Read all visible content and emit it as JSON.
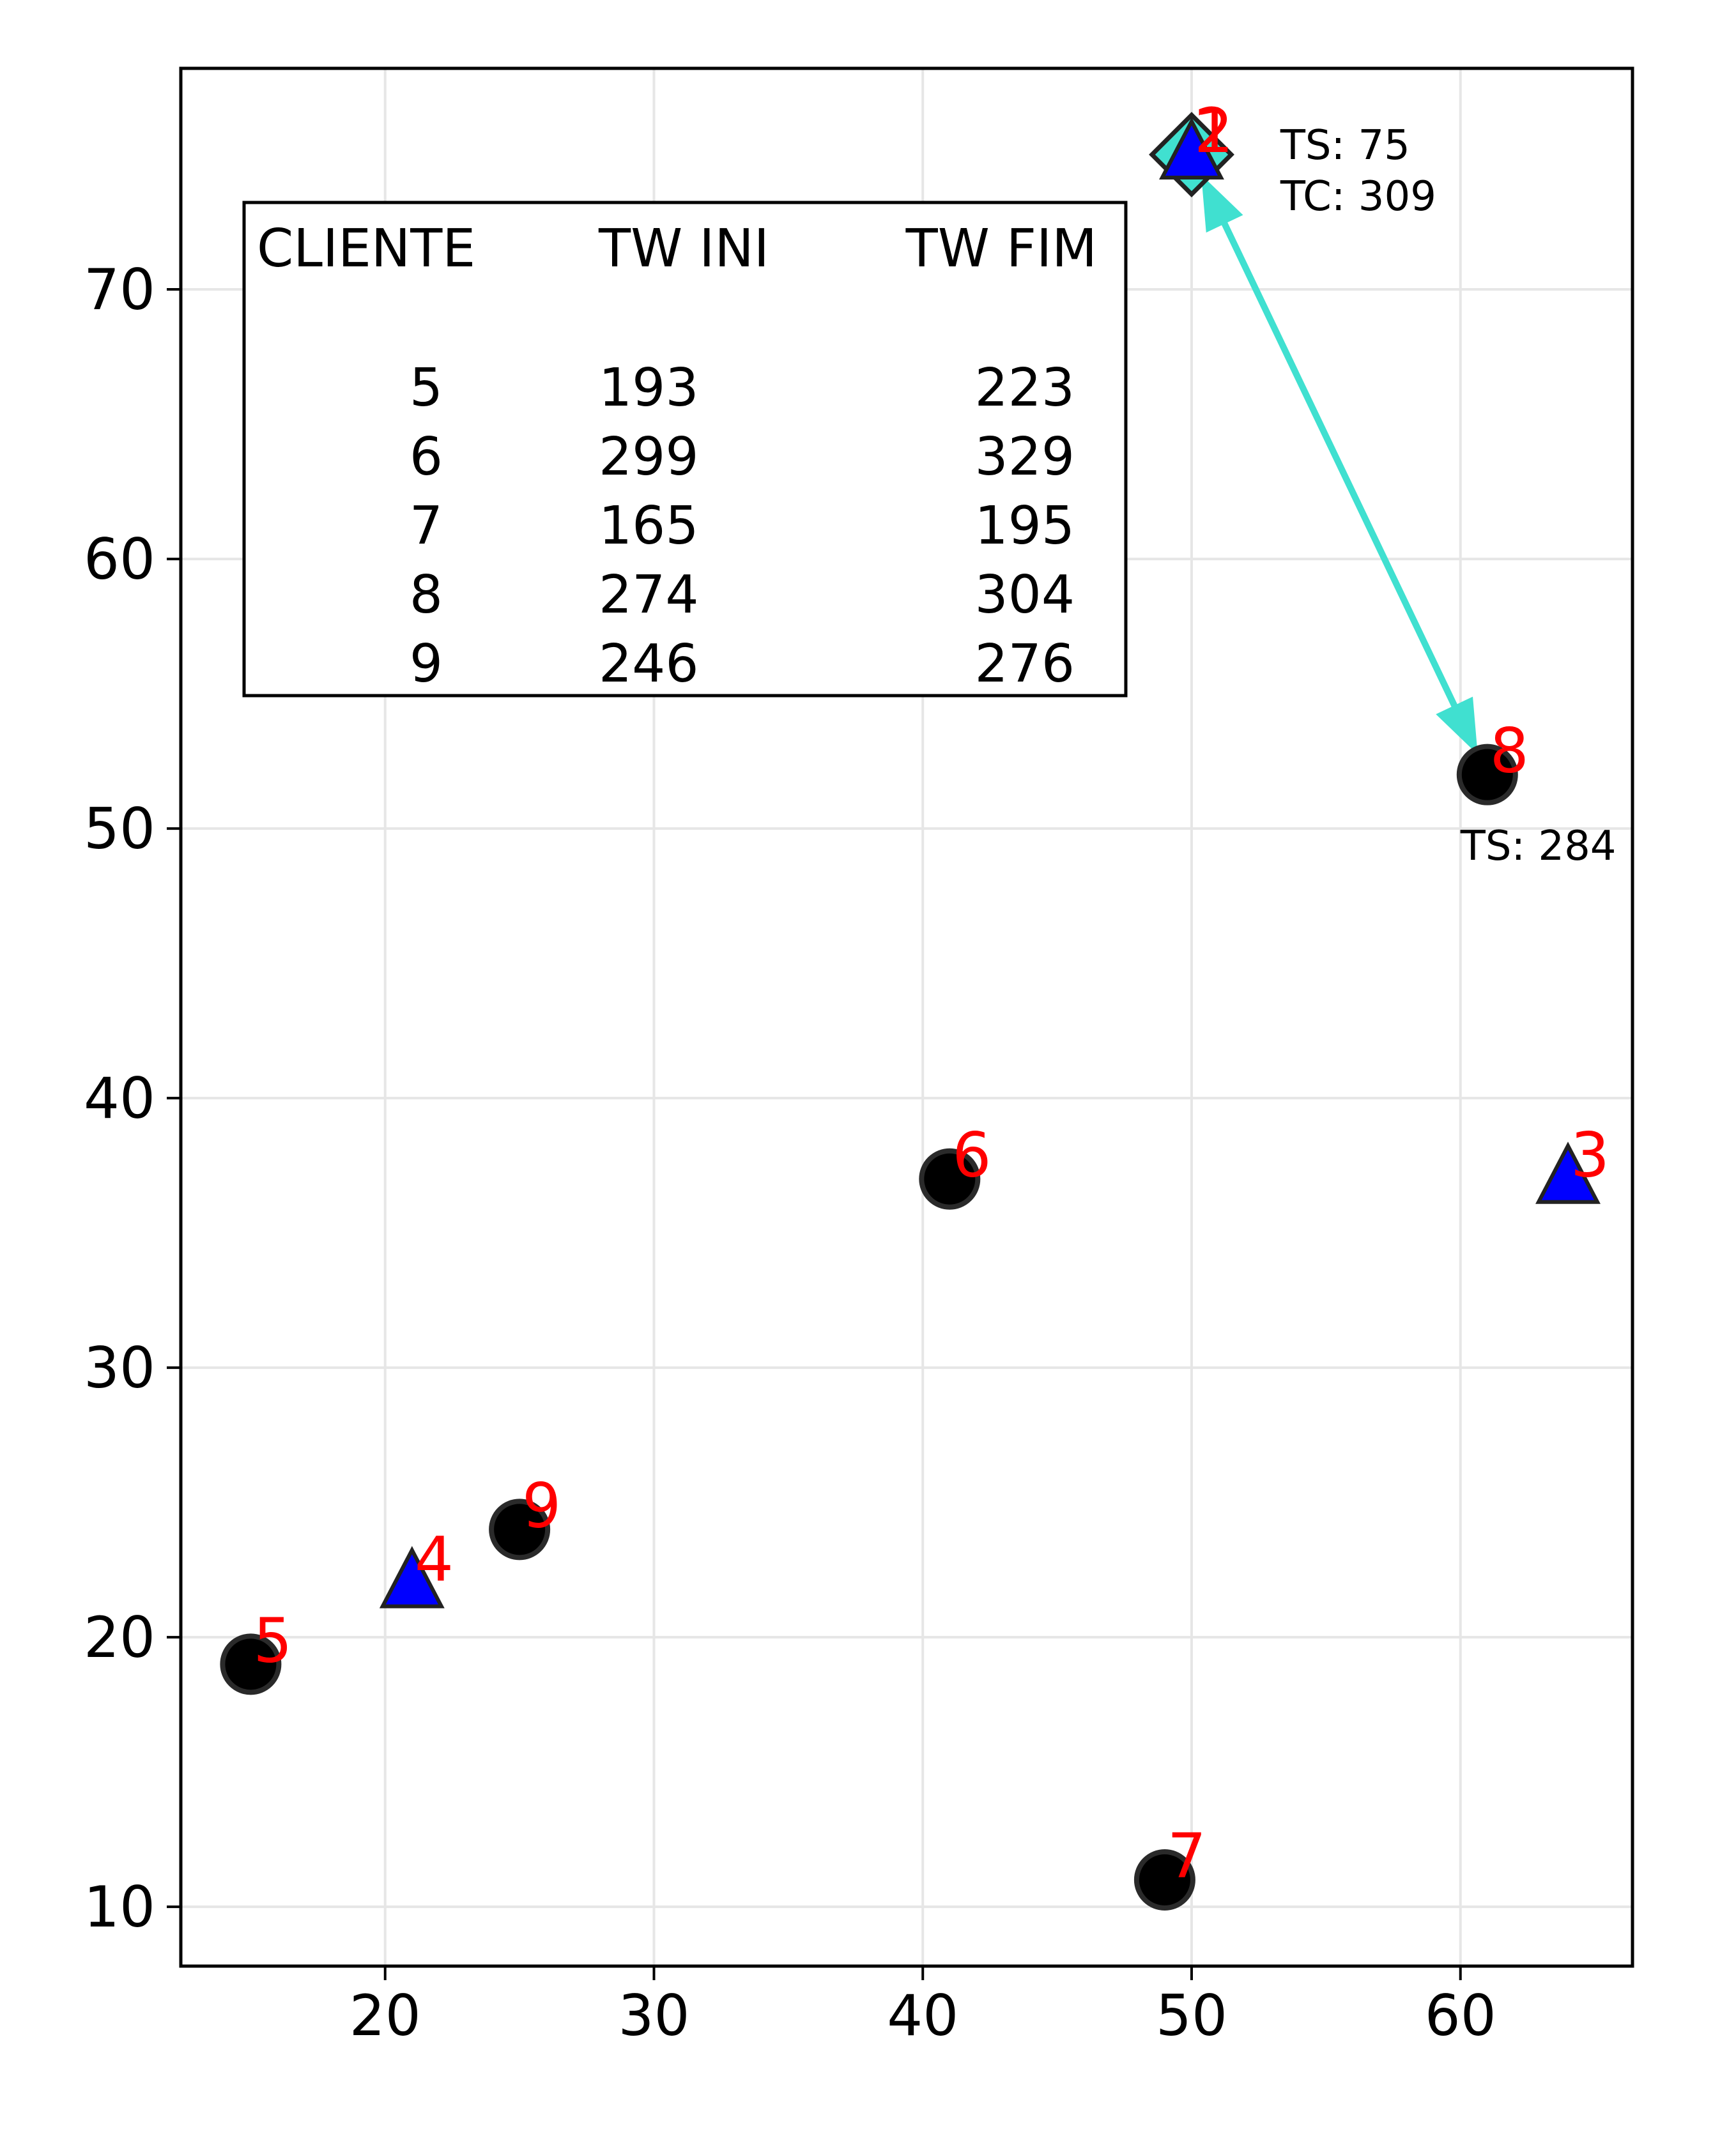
{
  "chart_data": {
    "type": "scatter",
    "xlim": [
      12.4,
      66.4
    ],
    "ylim": [
      7.8,
      78.2
    ],
    "x_ticks": [
      20,
      30,
      40,
      50,
      60
    ],
    "y_ticks": [
      10,
      20,
      30,
      40,
      50,
      60,
      70
    ],
    "grid": true,
    "depots": [
      {
        "label": "1",
        "x": 50,
        "y": 75
      },
      {
        "label": "2",
        "x": 50,
        "y": 75
      },
      {
        "label": "3",
        "x": 64,
        "y": 37
      },
      {
        "label": "4",
        "x": 21,
        "y": 22
      }
    ],
    "customers": [
      {
        "label": "5",
        "x": 15,
        "y": 19
      },
      {
        "label": "6",
        "x": 41,
        "y": 37
      },
      {
        "label": "7",
        "x": 49,
        "y": 11
      },
      {
        "label": "8",
        "x": 61,
        "y": 52
      },
      {
        "label": "9",
        "x": 25,
        "y": 24
      }
    ],
    "route": {
      "color": "#40e0d0",
      "edges": [
        [
          50,
          75,
          61,
          52
        ],
        [
          61,
          52,
          50,
          75
        ]
      ]
    },
    "annotations": [
      {
        "lines": [
          "TS: 75",
          "TC: 309"
        ],
        "x": 53.3,
        "y": 75.5
      },
      {
        "lines": [
          "TS: 284"
        ],
        "x": 60,
        "y": 49.5
      }
    ],
    "table": {
      "headers": [
        "CLIENTE",
        "TW INI",
        "TW FIM"
      ],
      "rows": [
        [
          "5",
          "193",
          "223"
        ],
        [
          "6",
          "299",
          "329"
        ],
        [
          "7",
          "165",
          "195"
        ],
        [
          "8",
          "274",
          "304"
        ],
        [
          "9",
          "246",
          "276"
        ]
      ]
    },
    "colors": {
      "depot": "#0000ff",
      "customer": "#000000",
      "label": "#ff0000",
      "route": "#40e0d0",
      "grid": "#e6e6e6"
    }
  }
}
